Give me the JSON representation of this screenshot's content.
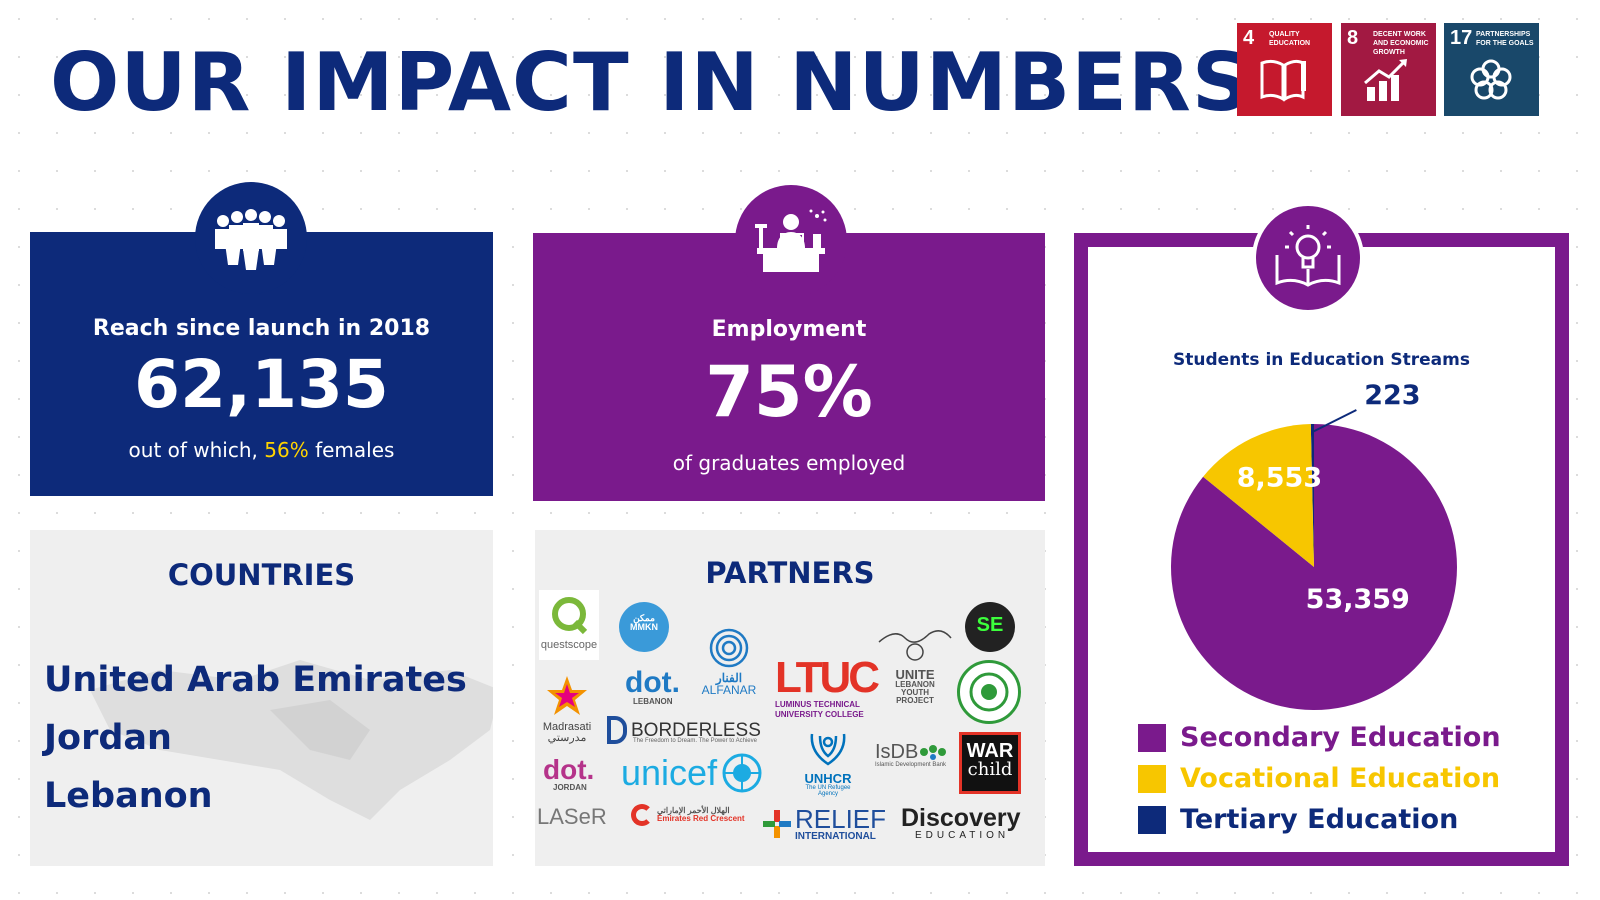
{
  "page_title": "OUR IMPACT IN NUMBERS",
  "sdg_goals": [
    {
      "number": "4",
      "label": "QUALITY EDUCATION",
      "color": "#c5192d",
      "icon": "book-icon"
    },
    {
      "number": "8",
      "label": "DECENT WORK AND ECONOMIC GROWTH",
      "color": "#a21942",
      "icon": "growth-chart-icon"
    },
    {
      "number": "17",
      "label": "PARTNERSHIPS FOR THE GOALS",
      "color": "#19486a",
      "icon": "partnership-flower-icon"
    }
  ],
  "reach": {
    "label": "Reach since launch in 2018",
    "value": "62,135",
    "sub_prefix": "out of which, ",
    "sub_highlight": "56%",
    "sub_suffix": " females",
    "icon": "people-group-icon"
  },
  "employment": {
    "label": "Employment",
    "value": "75%",
    "sub": "of graduates employed",
    "icon": "desk-worker-icon"
  },
  "countries": {
    "title": "COUNTRIES",
    "items": [
      "United Arab Emirates",
      "Jordan",
      "Lebanon"
    ]
  },
  "partners": {
    "title": "PARTNERS",
    "logos": {
      "questscope": "questscope",
      "mmkn": "MMKN",
      "mmkn_ar": "ممكن",
      "dot_lebanon": "dot.",
      "dot_lebanon_sub": "LEBANON",
      "alfanar": "ALFANAR",
      "alfanar_ar": "الفنار",
      "ltuc": "LTUC",
      "ltuc_sub": "LUMINUS TECHNICAL UNIVERSITY COLLEGE",
      "unite": "UNITE",
      "unite_sub": "LEBANON YOUTH PROJECT",
      "se": "SE",
      "madrassati": "Madrasati",
      "madrassati_ar": "مدرستي",
      "borderless": "BORDERLESS",
      "borderless_sub": "The Freedom to Dream. The Power to Achieve",
      "dot_jordan": "dot.",
      "dot_jordan_sub": "JORDAN",
      "unicef": "unicef",
      "unhcr": "UNHCR",
      "unhcr_sub": "The UN Refugee Agency",
      "isdb": "IsDB",
      "isdb_sub": "Islamic Development Bank",
      "warchild_1": "WAR",
      "warchild_2": "child",
      "laser": "LASeR",
      "redcrescent": "Emirates Red Crescent",
      "redcrescent_ar": "الهلال الأحمر الإماراتي",
      "relief": "RELIEF",
      "relief_sub": "INTERNATIONAL",
      "discovery": "Discovery",
      "discovery_sub": "EDUCATION"
    }
  },
  "education": {
    "icon": "lightbulb-book-icon",
    "title": "Students in Education Streams"
  },
  "chart_data": {
    "type": "pie",
    "title": "Students in Education Streams",
    "series": [
      {
        "name": "Secondary Education",
        "value": 53359,
        "label": "53,359",
        "color": "#7a1a8c"
      },
      {
        "name": "Vocational Education",
        "value": 8553,
        "label": "8,553",
        "color": "#f7c600"
      },
      {
        "name": "Tertiary Education",
        "value": 223,
        "label": "223",
        "color": "#0d2a7a"
      }
    ],
    "legend_position": "bottom"
  },
  "colors": {
    "navy": "#0d2a7a",
    "purple": "#7a1a8c",
    "yellow": "#ffd400",
    "grey_panel": "#efefef"
  }
}
